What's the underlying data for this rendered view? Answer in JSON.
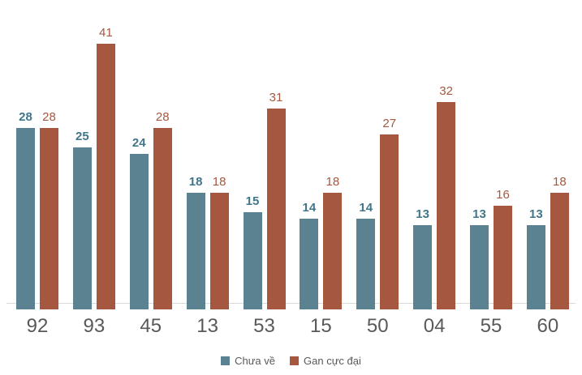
{
  "chart_data": {
    "type": "bar",
    "title": "",
    "xlabel": "",
    "ylabel": "",
    "categories": [
      "92",
      "93",
      "45",
      "13",
      "53",
      "15",
      "50",
      "04",
      "55",
      "60"
    ],
    "series": [
      {
        "name": "Chưa về",
        "bar_color": "#5b8290",
        "label_color": "#41768a",
        "values": [
          28,
          25,
          24,
          18,
          15,
          14,
          14,
          13,
          13,
          13
        ]
      },
      {
        "name": "Gan cực đại",
        "bar_color": "#a5573f",
        "label_color": "#a5573f",
        "values": [
          28,
          41,
          28,
          18,
          31,
          18,
          27,
          32,
          16,
          18
        ]
      }
    ],
    "ylim": [
      0,
      41
    ],
    "grid": false,
    "data_labels": true,
    "legend_position": "bottom",
    "axis_line_color": "#d9d9d9",
    "x_tick_color": "#595959"
  },
  "legend": {
    "items": [
      {
        "label": "Chưa về"
      },
      {
        "label": "Gan cực đại"
      }
    ]
  }
}
